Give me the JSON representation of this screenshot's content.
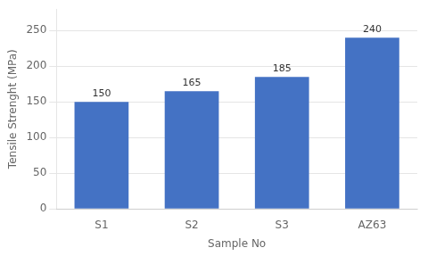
{
  "chart_data": {
    "type": "bar",
    "categories": [
      "S1",
      "S2",
      "S3",
      "AZ63"
    ],
    "values": [
      150,
      165,
      185,
      240
    ],
    "color": "#4472C4",
    "xlabel": "Sample No",
    "ylabel": "Tensile Strenght (MPa)",
    "ylim": [
      0,
      280
    ],
    "yticks": [
      0,
      50,
      100,
      150,
      200,
      250
    ],
    "grid": true,
    "data_labels": true
  }
}
